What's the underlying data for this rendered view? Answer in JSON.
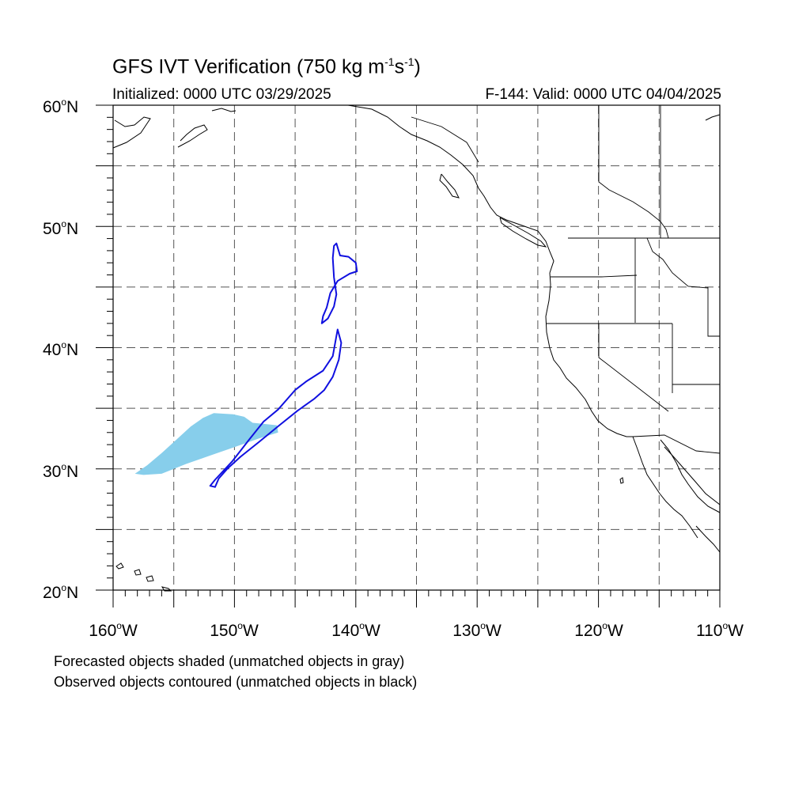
{
  "title": {
    "prefix": "GFS IVT Verification (750 kg m",
    "exp1": "-1",
    "mid": "s",
    "exp2": "-1",
    "suffix": ")"
  },
  "initialized": "Initialized: 0000 UTC 03/29/2025",
  "valid": "F-144: Valid: 0000 UTC 04/04/2025",
  "lat_ticks": [
    {
      "value": 60,
      "label": "60",
      "hemi": "N"
    },
    {
      "value": 50,
      "label": "50",
      "hemi": "N"
    },
    {
      "value": 40,
      "label": "40",
      "hemi": "N"
    },
    {
      "value": 30,
      "label": "30",
      "hemi": "N"
    },
    {
      "value": 20,
      "label": "20",
      "hemi": "N"
    }
  ],
  "lon_ticks": [
    {
      "value": -160,
      "label": "160",
      "hemi": "W"
    },
    {
      "value": -150,
      "label": "150",
      "hemi": "W"
    },
    {
      "value": -140,
      "label": "140",
      "hemi": "W"
    },
    {
      "value": -130,
      "label": "130",
      "hemi": "W"
    },
    {
      "value": -120,
      "label": "120",
      "hemi": "W"
    },
    {
      "value": -110,
      "label": "110",
      "hemi": "W"
    }
  ],
  "deg_symbol": "o",
  "footnotes": [
    "Forecasted objects shaded (unmatched objects in gray)",
    "Observed objects contoured (unmatched objects in black)"
  ],
  "map_extent": {
    "lon": [
      -160,
      -110
    ],
    "lat": [
      20,
      60
    ]
  },
  "colors": {
    "forecast_fill": "#87CEEB",
    "observed_contour": "#1010E0",
    "gridline": "#555555"
  },
  "forecast_objects": [
    {
      "points": [
        [
          -158.2,
          29.6
        ],
        [
          -157.2,
          30.3
        ],
        [
          -156.0,
          31.3
        ],
        [
          -154.8,
          32.4
        ],
        [
          -153.6,
          33.5
        ],
        [
          -152.6,
          34.2
        ],
        [
          -151.7,
          34.6
        ],
        [
          -150.1,
          34.5
        ],
        [
          -149.2,
          34.3
        ],
        [
          -148.5,
          33.8
        ],
        [
          -147.5,
          33.7
        ],
        [
          -146.5,
          33.6
        ],
        [
          -146.4,
          33.0
        ],
        [
          -148.0,
          32.5
        ],
        [
          -150.0,
          31.8
        ],
        [
          -152.0,
          31.1
        ],
        [
          -154.0,
          30.4
        ],
        [
          -156.0,
          29.6
        ],
        [
          -157.5,
          29.5
        ]
      ]
    }
  ],
  "observed_objects": [
    {
      "points": [
        [
          -141.6,
          48.6
        ],
        [
          -141.3,
          47.6
        ],
        [
          -140.6,
          47.5
        ],
        [
          -140.0,
          47.0
        ],
        [
          -139.9,
          46.3
        ],
        [
          -140.5,
          46.1
        ],
        [
          -141.5,
          45.5
        ],
        [
          -142.1,
          44.5
        ],
        [
          -142.4,
          43.3
        ],
        [
          -142.7,
          42.6
        ],
        [
          -142.8,
          42.0
        ],
        [
          -142.3,
          42.4
        ],
        [
          -141.8,
          43.4
        ],
        [
          -141.6,
          44.4
        ],
        [
          -141.8,
          45.8
        ],
        [
          -141.9,
          47.4
        ],
        [
          -141.8,
          48.4
        ]
      ]
    },
    {
      "points": [
        [
          -141.5,
          41.5
        ],
        [
          -141.2,
          40.4
        ],
        [
          -141.4,
          39.0
        ],
        [
          -141.9,
          37.6
        ],
        [
          -142.6,
          36.5
        ],
        [
          -143.4,
          35.8
        ],
        [
          -144.8,
          34.8
        ],
        [
          -146.3,
          33.6
        ],
        [
          -148.0,
          32.2
        ],
        [
          -149.5,
          31.0
        ],
        [
          -150.6,
          30.0
        ],
        [
          -151.3,
          29.2
        ],
        [
          -151.6,
          28.5
        ],
        [
          -152.0,
          28.6
        ],
        [
          -151.6,
          29.1
        ],
        [
          -150.2,
          30.6
        ],
        [
          -148.8,
          32.4
        ],
        [
          -147.6,
          33.9
        ],
        [
          -146.4,
          34.9
        ],
        [
          -145.0,
          36.5
        ],
        [
          -144.1,
          37.2
        ],
        [
          -142.7,
          38.1
        ],
        [
          -141.9,
          39.3
        ],
        [
          -141.5,
          41.5
        ]
      ]
    }
  ]
}
